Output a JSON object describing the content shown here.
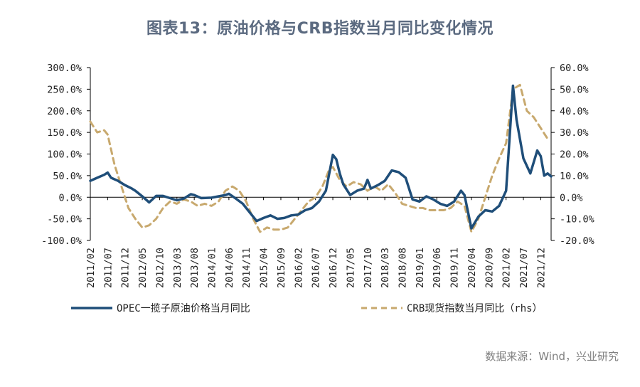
{
  "page": {
    "title": "图表13：原油价格与CRB指数当月同比变化情况",
    "source": "数据来源：Wind，兴业研究"
  },
  "colors": {
    "oil": "#1f4e79",
    "crb": "#c8a96e",
    "axis": "#000000"
  },
  "chart_data": {
    "type": "line",
    "title": "图表13：原油价格与CRB指数当月同比变化情况",
    "xlabel": "",
    "ylabel_left": "",
    "ylabel_right": "",
    "x_tick_labels": [
      "2011/02",
      "2011/07",
      "2011/12",
      "2012/05",
      "2012/10",
      "2013/03",
      "2013/08",
      "2014/01",
      "2014/06",
      "2014/11",
      "2015/04",
      "2015/09",
      "2016/02",
      "2016/07",
      "2016/12",
      "2017/05",
      "2017/10",
      "2018/03",
      "2018/08",
      "2019/01",
      "2019/06",
      "2019/11",
      "2020/04",
      "2020/09",
      "2021/02",
      "2021/07",
      "2021/12"
    ],
    "y_left": {
      "ylim": [
        -100,
        300
      ],
      "ticks": [
        "300.0%",
        "250.0%",
        "200.0%",
        "150.0%",
        "100.0%",
        "50.0%",
        "0.0%",
        "-50.0%",
        "-100.0%"
      ],
      "values": [
        300,
        250,
        200,
        150,
        100,
        50,
        0,
        -50,
        -100
      ]
    },
    "y_right": {
      "ylim": [
        -20,
        60
      ],
      "ticks": [
        "60.0%",
        "50.0%",
        "40.0%",
        "30.0%",
        "20.0%",
        "10.0%",
        "0.0%",
        "-10.0%",
        "-20.0%"
      ],
      "values": [
        60,
        50,
        40,
        30,
        20,
        10,
        0,
        -10,
        -20
      ]
    },
    "legend": {
      "placement": "bottom"
    },
    "series": [
      {
        "name": "OPEC一揽子原油价格当月同比",
        "axis": "left",
        "style": "solid",
        "points": [
          [
            "2011/02",
            38
          ],
          [
            "2011/04",
            45
          ],
          [
            "2011/06",
            52
          ],
          [
            "2011/07",
            57
          ],
          [
            "2011/08",
            45
          ],
          [
            "2011/10",
            38
          ],
          [
            "2011/12",
            28
          ],
          [
            "2012/02",
            20
          ],
          [
            "2012/03",
            15
          ],
          [
            "2012/05",
            2
          ],
          [
            "2012/07",
            -12
          ],
          [
            "2012/09",
            3
          ],
          [
            "2012/11",
            3
          ],
          [
            "2013/01",
            -2
          ],
          [
            "2013/03",
            -7
          ],
          [
            "2013/05",
            -3
          ],
          [
            "2013/07",
            7
          ],
          [
            "2013/08",
            5
          ],
          [
            "2013/10",
            -2
          ],
          [
            "2014/01",
            -1
          ],
          [
            "2014/03",
            2
          ],
          [
            "2014/05",
            5
          ],
          [
            "2014/06",
            8
          ],
          [
            "2014/08",
            -3
          ],
          [
            "2014/10",
            -15
          ],
          [
            "2014/12",
            -35
          ],
          [
            "2015/02",
            -55
          ],
          [
            "2015/04",
            -48
          ],
          [
            "2015/06",
            -42
          ],
          [
            "2015/08",
            -50
          ],
          [
            "2015/10",
            -48
          ],
          [
            "2015/12",
            -42
          ],
          [
            "2016/02",
            -40
          ],
          [
            "2016/04",
            -30
          ],
          [
            "2016/06",
            -25
          ],
          [
            "2016/08",
            -10
          ],
          [
            "2016/10",
            15
          ],
          [
            "2016/12",
            98
          ],
          [
            "2017/01",
            88
          ],
          [
            "2017/02",
            55
          ],
          [
            "2017/03",
            30
          ],
          [
            "2017/05",
            5
          ],
          [
            "2017/07",
            15
          ],
          [
            "2017/09",
            20
          ],
          [
            "2017/10",
            40
          ],
          [
            "2017/11",
            20
          ],
          [
            "2018/01",
            28
          ],
          [
            "2018/03",
            38
          ],
          [
            "2018/05",
            62
          ],
          [
            "2018/07",
            58
          ],
          [
            "2018/09",
            45
          ],
          [
            "2018/11",
            -5
          ],
          [
            "2019/01",
            -10
          ],
          [
            "2019/03",
            2
          ],
          [
            "2019/05",
            -5
          ],
          [
            "2019/07",
            -15
          ],
          [
            "2019/09",
            -20
          ],
          [
            "2019/11",
            -10
          ],
          [
            "2020/01",
            15
          ],
          [
            "2020/02",
            5
          ],
          [
            "2020/04",
            -72
          ],
          [
            "2020/06",
            -45
          ],
          [
            "2020/08",
            -30
          ],
          [
            "2020/10",
            -33
          ],
          [
            "2020/12",
            -20
          ],
          [
            "2021/02",
            15
          ],
          [
            "2021/04",
            258
          ],
          [
            "2021/05",
            180
          ],
          [
            "2021/07",
            90
          ],
          [
            "2021/09",
            55
          ],
          [
            "2021/11",
            108
          ],
          [
            "2021/12",
            95
          ],
          [
            "2022/01",
            50
          ],
          [
            "2022/02",
            55
          ],
          [
            "2022/03",
            48
          ]
        ]
      },
      {
        "name": "CRB现货指数当月同比（rhs）",
        "axis": "right",
        "style": "dashed",
        "points": [
          [
            "2011/02",
            35
          ],
          [
            "2011/04",
            30
          ],
          [
            "2011/06",
            31
          ],
          [
            "2011/07",
            29
          ],
          [
            "2011/09",
            15
          ],
          [
            "2011/11",
            5
          ],
          [
            "2012/01",
            -5
          ],
          [
            "2012/03",
            -10
          ],
          [
            "2012/05",
            -14
          ],
          [
            "2012/07",
            -13
          ],
          [
            "2012/09",
            -10
          ],
          [
            "2012/11",
            -5
          ],
          [
            "2013/01",
            -2
          ],
          [
            "2013/03",
            -3
          ],
          [
            "2013/05",
            -1
          ],
          [
            "2013/07",
            -2
          ],
          [
            "2013/09",
            -4
          ],
          [
            "2013/11",
            -3
          ],
          [
            "2014/01",
            -4
          ],
          [
            "2014/03",
            -2
          ],
          [
            "2014/05",
            3
          ],
          [
            "2014/07",
            5
          ],
          [
            "2014/09",
            3
          ],
          [
            "2014/11",
            -2
          ],
          [
            "2015/01",
            -10
          ],
          [
            "2015/03",
            -16
          ],
          [
            "2015/05",
            -14
          ],
          [
            "2015/07",
            -15
          ],
          [
            "2015/09",
            -15
          ],
          [
            "2015/11",
            -14
          ],
          [
            "2016/01",
            -10
          ],
          [
            "2016/03",
            -6
          ],
          [
            "2016/05",
            -2
          ],
          [
            "2016/07",
            0
          ],
          [
            "2016/09",
            5
          ],
          [
            "2016/11",
            13
          ],
          [
            "2016/12",
            14
          ],
          [
            "2017/02",
            8
          ],
          [
            "2017/04",
            5
          ],
          [
            "2017/06",
            7
          ],
          [
            "2017/08",
            6
          ],
          [
            "2017/10",
            3
          ],
          [
            "2017/12",
            5
          ],
          [
            "2018/02",
            3
          ],
          [
            "2018/04",
            6
          ],
          [
            "2018/06",
            2
          ],
          [
            "2018/08",
            -3
          ],
          [
            "2018/10",
            -4
          ],
          [
            "2018/12",
            -5
          ],
          [
            "2019/02",
            -5
          ],
          [
            "2019/04",
            -6
          ],
          [
            "2019/06",
            -6
          ],
          [
            "2019/08",
            -6
          ],
          [
            "2019/10",
            -5
          ],
          [
            "2019/12",
            -2
          ],
          [
            "2020/02",
            -4
          ],
          [
            "2020/04",
            -16
          ],
          [
            "2020/06",
            -10
          ],
          [
            "2020/08",
            0
          ],
          [
            "2020/10",
            10
          ],
          [
            "2020/12",
            18
          ],
          [
            "2021/02",
            25
          ],
          [
            "2021/04",
            50
          ],
          [
            "2021/06",
            52
          ],
          [
            "2021/08",
            40
          ],
          [
            "2021/10",
            37
          ],
          [
            "2021/12",
            32
          ],
          [
            "2022/02",
            27
          ]
        ]
      }
    ]
  }
}
